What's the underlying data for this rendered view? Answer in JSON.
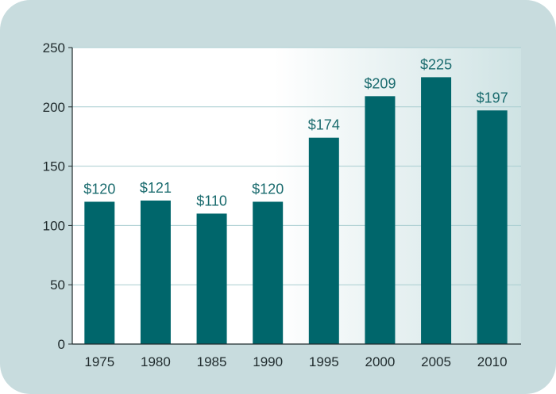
{
  "chart_data": {
    "type": "bar",
    "title": "",
    "xlabel": "",
    "ylabel": "",
    "categories": [
      "1975",
      "1980",
      "1985",
      "1990",
      "1995",
      "2000",
      "2005",
      "2010"
    ],
    "values": [
      120,
      121,
      110,
      120,
      174,
      209,
      225,
      197
    ],
    "data_labels": [
      "$120",
      "$121",
      "$110",
      "$120",
      "$174",
      "$209",
      "$225",
      "$197"
    ],
    "ylim": [
      0,
      250
    ],
    "yticks": [
      0,
      50,
      100,
      150,
      200,
      250
    ],
    "ytick_labels": [
      "0",
      "50",
      "100",
      "150",
      "200",
      "250"
    ],
    "grid": true,
    "legend": "none",
    "colors": {
      "bar": "#00666b",
      "data_label": "#1a6b6e",
      "gridline": "#a9cdd0",
      "axis": "#1f2a2c",
      "background": "#c8dcde"
    }
  }
}
